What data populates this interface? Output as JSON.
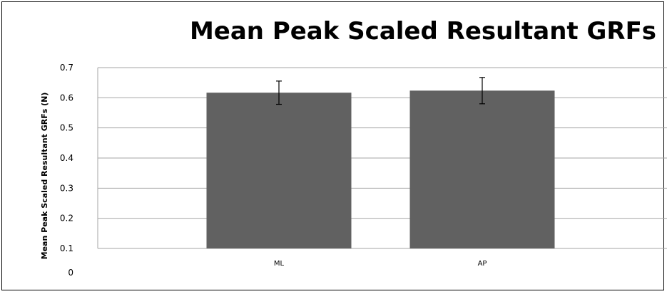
{
  "chart_data": {
    "type": "bar",
    "title": "Mean Peak Scaled Resultant GRFs",
    "ylabel": "Mean Peak Scaled Resultant GRFs (N)",
    "xlabel": "",
    "categories": [
      "ML",
      "AP"
    ],
    "values": [
      0.603,
      0.611
    ],
    "error": [
      0.045,
      0.051
    ],
    "ylim": [
      0,
      0.7
    ],
    "yticks": [
      "0",
      "0.1",
      "0.2",
      "0.3",
      "0.4",
      "0.5",
      "0.6",
      "0.7"
    ],
    "bar_color": "#616161",
    "grid": true,
    "legend": "none"
  }
}
